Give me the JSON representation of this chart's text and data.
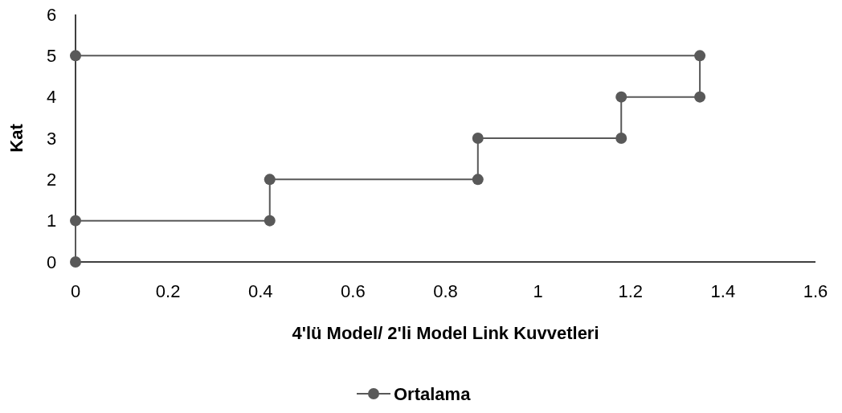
{
  "chart_data": {
    "type": "line",
    "xlabel": "4'lü Model/ 2'li Model Link Kuvvetleri",
    "ylabel": "Kat",
    "xlim": [
      0,
      1.6
    ],
    "xticks": [
      0,
      0.2,
      0.4,
      0.6,
      0.8,
      1,
      1.2,
      1.4,
      1.6
    ],
    "ylim": [
      0,
      6
    ],
    "yticks": [
      0,
      1,
      2,
      3,
      4,
      5,
      6
    ],
    "grid": false,
    "legend": "bottom",
    "marker": "circle",
    "line_style": "solid",
    "series": [
      {
        "name": "Ortalama",
        "color": "#595959",
        "x": [
          0,
          0,
          0.42,
          0.42,
          0.87,
          0.87,
          1.18,
          1.18,
          1.35,
          1.35,
          0
        ],
        "values": [
          0,
          1,
          1,
          2,
          2,
          3,
          3,
          4,
          4,
          5,
          5
        ]
      }
    ]
  }
}
